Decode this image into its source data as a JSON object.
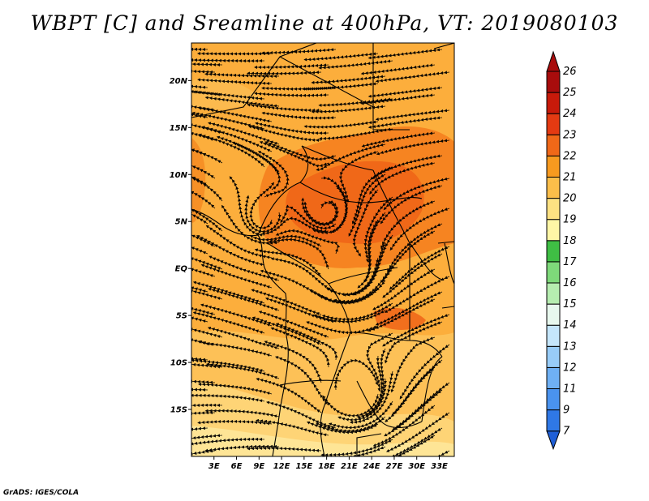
{
  "chart_data": {
    "type": "heatmap",
    "title": "WBPT [C] and Sreamline at 400hPa, VT: 2019080103",
    "variable": "WBPT [C]",
    "level": "400hPa",
    "valid_time": "2019080103",
    "overlay": "streamlines",
    "xlabel": "",
    "ylabel": "",
    "xlim": [
      0,
      35
    ],
    "ylim": [
      -20,
      24
    ],
    "x_ticks": [
      {
        "value": 3,
        "label": "3E"
      },
      {
        "value": 6,
        "label": "6E"
      },
      {
        "value": 9,
        "label": "9E"
      },
      {
        "value": 12,
        "label": "12E"
      },
      {
        "value": 15,
        "label": "15E"
      },
      {
        "value": 18,
        "label": "18E"
      },
      {
        "value": 21,
        "label": "21E"
      },
      {
        "value": 24,
        "label": "24E"
      },
      {
        "value": 27,
        "label": "27E"
      },
      {
        "value": 30,
        "label": "30E"
      },
      {
        "value": 33,
        "label": "33E"
      }
    ],
    "y_ticks": [
      {
        "value": 20,
        "label": "20N"
      },
      {
        "value": 15,
        "label": "15N"
      },
      {
        "value": 10,
        "label": "10N"
      },
      {
        "value": 5,
        "label": "5N"
      },
      {
        "value": 0,
        "label": "EQ"
      },
      {
        "value": -5,
        "label": "5S"
      },
      {
        "value": -10,
        "label": "10S"
      },
      {
        "value": -15,
        "label": "15S"
      }
    ],
    "colorbar": {
      "labels": [
        "7",
        "9",
        "11",
        "12",
        "13",
        "14",
        "15",
        "16",
        "17",
        "18",
        "19",
        "20",
        "21",
        "22",
        "23",
        "24",
        "25",
        "26"
      ],
      "colors": [
        "#1f5fd6",
        "#2f78e6",
        "#4a93ef",
        "#6fb0f4",
        "#98ccf8",
        "#c5e6fb",
        "#e8f8ee",
        "#b6edb0",
        "#7ed97a",
        "#3fbe44",
        "#fff6a6",
        "#fde182",
        "#fbbe4a",
        "#f79a1f",
        "#f06818",
        "#e43a12",
        "#c81a0a",
        "#a80c0c"
      ]
    }
  }
}
